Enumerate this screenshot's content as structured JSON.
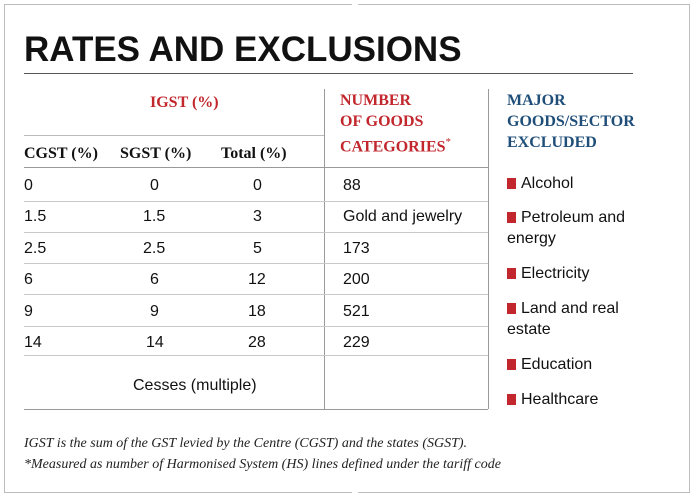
{
  "title": "RATES AND EXCLUSIONS",
  "headers": {
    "igst": "IGST (%)",
    "cgst": "CGST (%)",
    "sgst": "SGST (%)",
    "total": "Total (%)",
    "goods_line1": "NUMBER",
    "goods_line2": "OF GOODS",
    "goods_line3": "CATEGORIES",
    "goods_star": "*",
    "excluded_line1": "MAJOR",
    "excluded_line2": "GOODS/SECTOR",
    "excluded_line3": "EXCLUDED"
  },
  "rows": [
    {
      "cgst": "0",
      "sgst": "0",
      "total": "0",
      "goods": "88"
    },
    {
      "cgst": "1.5",
      "sgst": "1.5",
      "total": "3",
      "goods": "Gold and jewelry"
    },
    {
      "cgst": "2.5",
      "sgst": "2.5",
      "total": "5",
      "goods": "173"
    },
    {
      "cgst": "6",
      "sgst": "6",
      "total": "12",
      "goods": "200"
    },
    {
      "cgst": "9",
      "sgst": "9",
      "total": "18",
      "goods": "521"
    },
    {
      "cgst": "14",
      "sgst": "14",
      "total": "28",
      "goods": "229"
    }
  ],
  "cesses": "Cesses (multiple)",
  "excluded": [
    {
      "line1": "Alcohol",
      "line2": ""
    },
    {
      "line1": "Petroleum and",
      "line2": "energy"
    },
    {
      "line1": "Electricity",
      "line2": ""
    },
    {
      "line1": "Land and real",
      "line2": "estate"
    },
    {
      "line1": "Education",
      "line2": ""
    },
    {
      "line1": "Healthcare",
      "line2": ""
    }
  ],
  "footnotes": {
    "line1": "IGST is the sum of the GST levied by the Centre (CGST) and the states (SGST).",
    "line2": "*Measured as number of Harmonised System (HS) lines defined under the tariff code"
  },
  "colors": {
    "accent_red": "#c1272d",
    "accent_blue": "#1f4e79"
  }
}
